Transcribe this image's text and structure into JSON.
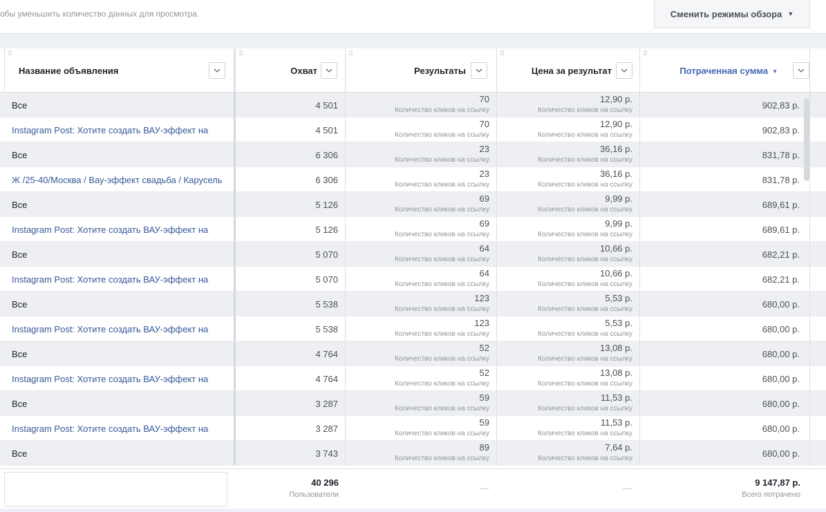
{
  "hint": "обы уменьшить количество данных для просмотра.",
  "view_button": {
    "label": "Сменить режимы обзора",
    "caret": "▼"
  },
  "columns": {
    "name": "Название объявления",
    "reach": "Охват",
    "results": "Результаты",
    "cost": "Цена за результат",
    "spent": "Потраченная сумма",
    "spent_sort": "▼"
  },
  "rows": [
    {
      "name": "Все",
      "reach": "4 501",
      "results": "70",
      "results_sub": "Количество кликов на ссылку",
      "cost": "12,90 р.",
      "cost_sub": "Количество кликов на ссылку",
      "spent": "902,83 р."
    },
    {
      "name": "Instagram Post: Хотите создать ВАУ-эффект на",
      "reach": "4 501",
      "results": "70",
      "results_sub": "Количество кликов на ссылку",
      "cost": "12,90 р.",
      "cost_sub": "Количество кликов на ссылку",
      "spent": "902,83 р."
    },
    {
      "name": "Все",
      "reach": "6 306",
      "results": "23",
      "results_sub": "Количество кликов на ссылку",
      "cost": "36,16 р.",
      "cost_sub": "Количество кликов на ссылку",
      "spent": "831,78 р."
    },
    {
      "name": "Ж /25-40/Москва / Вау-эффект свадьба / Карусель",
      "reach": "6 306",
      "results": "23",
      "results_sub": "Количество кликов на ссылку",
      "cost": "36,16 р.",
      "cost_sub": "Количество кликов на ссылку",
      "spent": "831,78 р."
    },
    {
      "name": "Все",
      "reach": "5 126",
      "results": "69",
      "results_sub": "Количество кликов на ссылку",
      "cost": "9,99 р.",
      "cost_sub": "Количество кликов на ссылку",
      "spent": "689,61 р."
    },
    {
      "name": "Instagram Post: Хотите создать ВАУ-эффект на",
      "reach": "5 126",
      "results": "69",
      "results_sub": "Количество кликов на ссылку",
      "cost": "9,99 р.",
      "cost_sub": "Количество кликов на ссылку",
      "spent": "689,61 р."
    },
    {
      "name": "Все",
      "reach": "5 070",
      "results": "64",
      "results_sub": "Количество кликов на ссылку",
      "cost": "10,66 р.",
      "cost_sub": "Количество кликов на ссылку",
      "spent": "682,21 р."
    },
    {
      "name": "Instagram Post: Хотите создать ВАУ-эффект на",
      "reach": "5 070",
      "results": "64",
      "results_sub": "Количество кликов на ссылку",
      "cost": "10,66 р.",
      "cost_sub": "Количество кликов на ссылку",
      "spent": "682,21 р."
    },
    {
      "name": "Все",
      "reach": "5 538",
      "results": "123",
      "results_sub": "Количество кликов на ссылку",
      "cost": "5,53 р.",
      "cost_sub": "Количество кликов на ссылку",
      "spent": "680,00 р."
    },
    {
      "name": "Instagram Post: Хотите создать ВАУ-эффект на",
      "reach": "5 538",
      "results": "123",
      "results_sub": "Количество кликов на ссылку",
      "cost": "5,53 р.",
      "cost_sub": "Количество кликов на ссылку",
      "spent": "680,00 р."
    },
    {
      "name": "Все",
      "reach": "4 764",
      "results": "52",
      "results_sub": "Количество кликов на ссылку",
      "cost": "13,08 р.",
      "cost_sub": "Количество кликов на ссылку",
      "spent": "680,00 р."
    },
    {
      "name": "Instagram Post: Хотите создать ВАУ-эффект на",
      "reach": "4 764",
      "results": "52",
      "results_sub": "Количество кликов на ссылку",
      "cost": "13,08 р.",
      "cost_sub": "Количество кликов на ссылку",
      "spent": "680,00 р."
    },
    {
      "name": "Все",
      "reach": "3 287",
      "results": "59",
      "results_sub": "Количество кликов на ссылку",
      "cost": "11,53 р.",
      "cost_sub": "Количество кликов на ссылку",
      "spent": "680,00 р."
    },
    {
      "name": "Instagram Post: Хотите создать ВАУ-эффект на",
      "reach": "3 287",
      "results": "59",
      "results_sub": "Количество кликов на ссылку",
      "cost": "11,53 р.",
      "cost_sub": "Количество кликов на ссылку",
      "spent": "680,00 р."
    },
    {
      "name": "Все",
      "reach": "3 743",
      "results": "89",
      "results_sub": "Количество кликов на ссылку",
      "cost": "7,64 р.",
      "cost_sub": "Количество кликов на ссылку",
      "spent": "680,00 р."
    }
  ],
  "totals": {
    "reach": "40 296",
    "reach_sub": "Пользователи",
    "results": "—",
    "cost": "—",
    "spent": "9 147,87 р.",
    "spent_sub": "Всего потрачено"
  },
  "colors": {
    "link": "#365899",
    "sorted_header": "#4267b2",
    "row_grey": "#edeff2"
  }
}
